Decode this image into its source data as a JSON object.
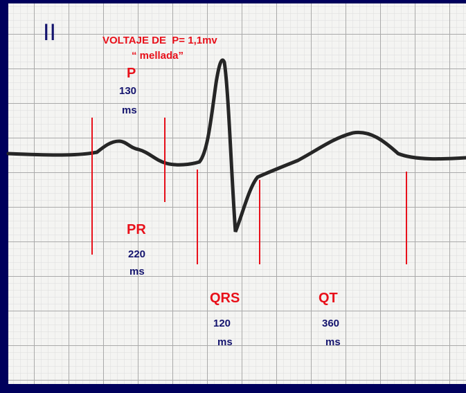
{
  "lead": "II",
  "title": "VOLTAJE DE  P= 1,1mv",
  "subtitle": "“ mellada”",
  "intervals": [
    {
      "name": "P",
      "value": 130,
      "unit": "ms"
    },
    {
      "name": "PR",
      "value": 220,
      "unit": "ms"
    },
    {
      "name": "QRS",
      "value": 120,
      "unit": "ms"
    },
    {
      "name": "QT",
      "value": 360,
      "unit": "ms"
    }
  ]
}
